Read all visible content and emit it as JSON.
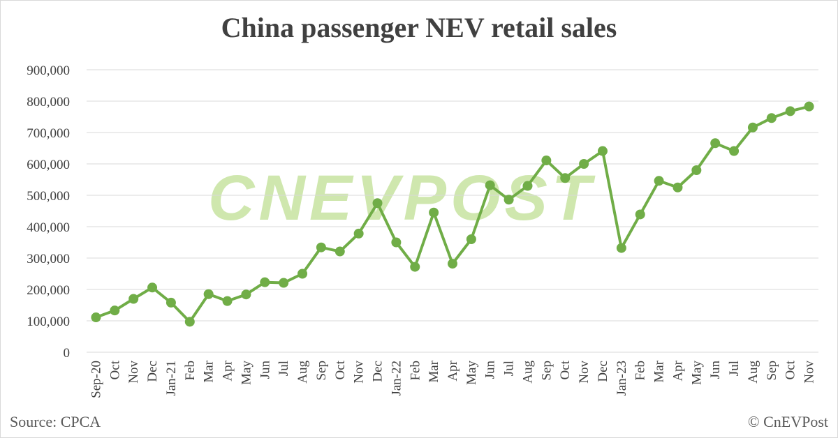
{
  "colors": {
    "line": "#70ad47",
    "grid": "#d9d9d9",
    "text": "#404040",
    "watermark": "#a8d46c"
  },
  "watermark": "CNEVPOST",
  "source": "Source: CPCA",
  "copyright": "© CnEVPost",
  "chart_data": {
    "type": "line",
    "title": "China passenger NEV retail sales",
    "xlabel": "",
    "ylabel": "",
    "ylim": [
      0,
      900000
    ],
    "yticks": [
      0,
      100000,
      200000,
      300000,
      400000,
      500000,
      600000,
      700000,
      800000,
      900000
    ],
    "ytick_labels": [
      "0",
      "100,000",
      "200,000",
      "300,000",
      "400,000",
      "500,000",
      "600,000",
      "700,000",
      "800,000",
      "900,000"
    ],
    "grid": true,
    "legend": "none",
    "categories": [
      "Sep-20",
      "Oct",
      "Nov",
      "Dec",
      "Jan-21",
      "Feb",
      "Mar",
      "Apr",
      "May",
      "Jun",
      "Jul",
      "Aug",
      "Sep",
      "Oct",
      "Nov",
      "Dec",
      "Jan-22",
      "Feb",
      "Mar",
      "Apr",
      "May",
      "Jun",
      "Jul",
      "Aug",
      "Sep",
      "Oct",
      "Nov",
      "Dec",
      "Jan-23",
      "Feb",
      "Mar",
      "Apr",
      "May",
      "Jun",
      "Jul",
      "Aug",
      "Sep",
      "Oct",
      "Nov"
    ],
    "series": [
      {
        "values": [
          111000,
          133000,
          170000,
          206000,
          158000,
          97000,
          185000,
          163000,
          184000,
          223000,
          221000,
          250000,
          334000,
          321000,
          378000,
          475000,
          350000,
          272000,
          445000,
          282000,
          360000,
          532000,
          486000,
          530000,
          611000,
          555000,
          600000,
          641000,
          332000,
          439000,
          546000,
          525000,
          580000,
          666000,
          641000,
          716000,
          746000,
          768000,
          783000
        ]
      }
    ]
  }
}
